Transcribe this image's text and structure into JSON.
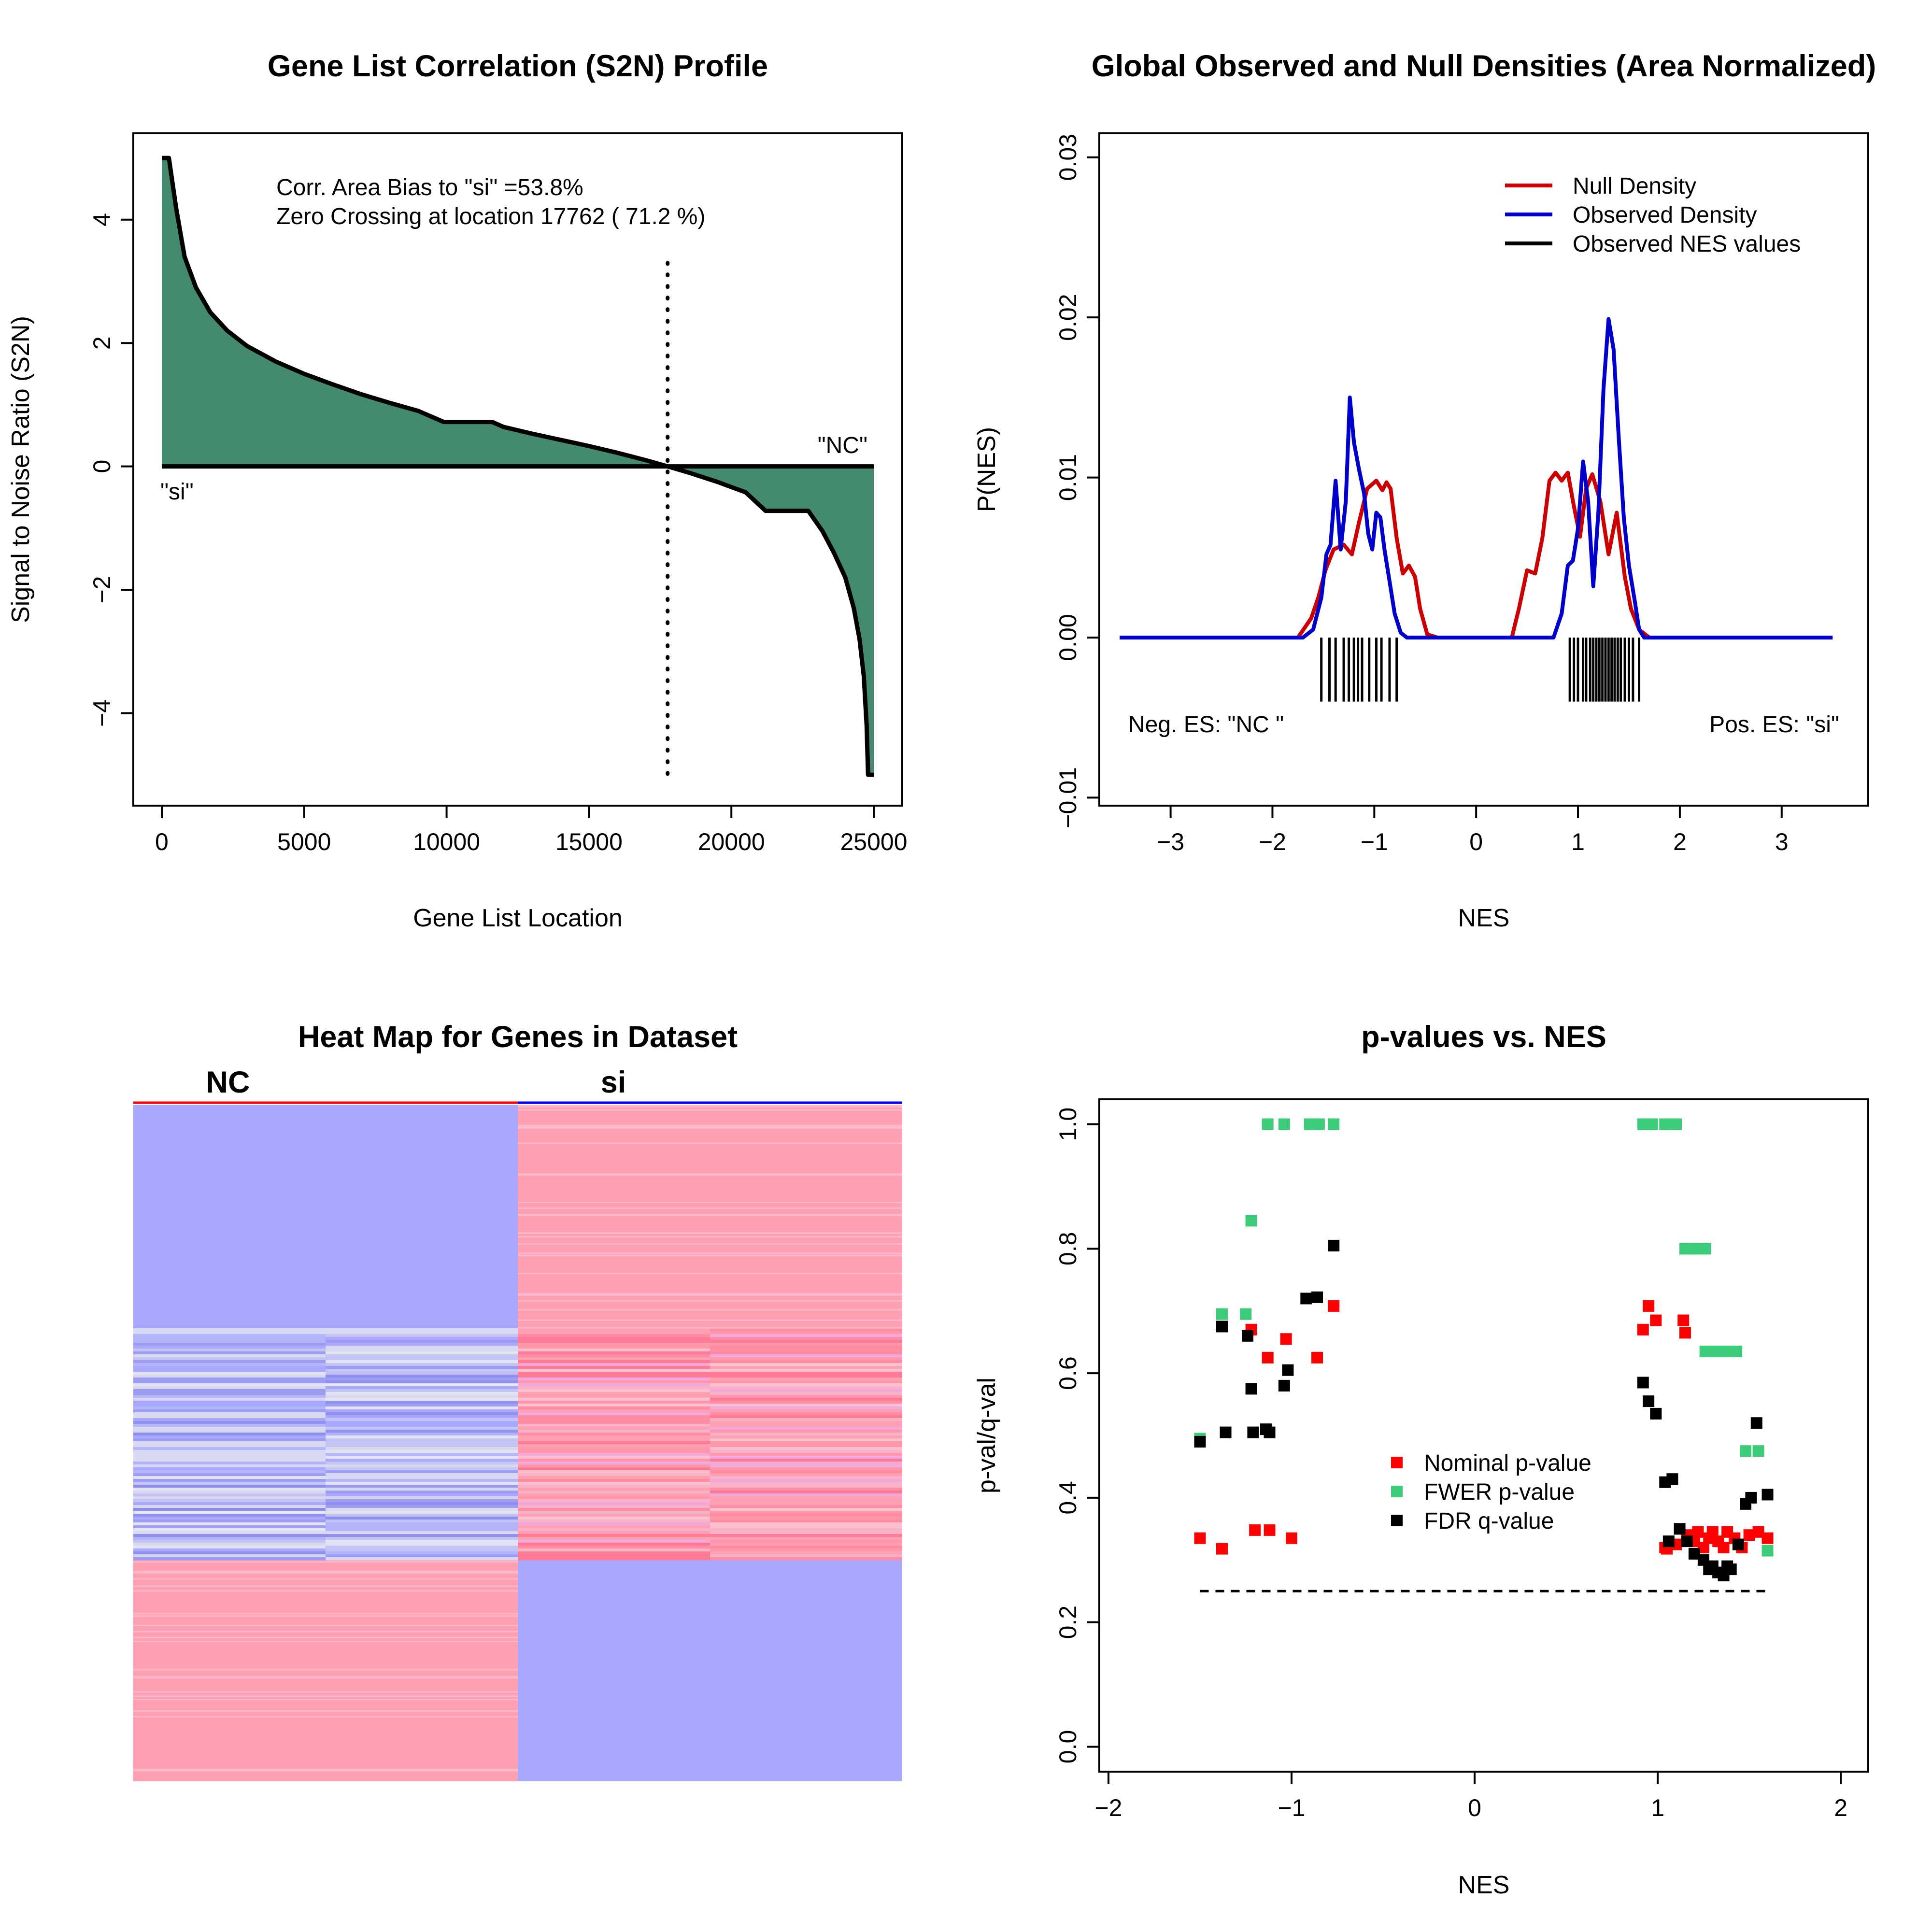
{
  "chart_data": [
    {
      "type": "area",
      "title": "Gene List Correlation (S2N) Profile",
      "xlabel": "Gene List Location",
      "ylabel": "Signal to Noise Ratio (S2N)",
      "xlim": [
        -1000,
        26000
      ],
      "ylim": [
        -5.5,
        5.4
      ],
      "xticks": [
        "0",
        "5000",
        "10000",
        "15000",
        "20000",
        "25000"
      ],
      "xtick_values": [
        0,
        5000,
        10000,
        15000,
        20000,
        25000
      ],
      "yticks": [
        "−4",
        "−2",
        "0",
        "2",
        "4"
      ],
      "ytick_values": [
        -4,
        -2,
        0,
        2,
        4
      ],
      "x": [
        0,
        250,
        500,
        800,
        1200,
        1700,
        2300,
        3000,
        4000,
        5000,
        6000,
        7000,
        8000,
        9000,
        9900,
        10000,
        11600,
        12000,
        13000,
        14000,
        15000,
        16000,
        17000,
        17762,
        18500,
        19500,
        20500,
        21200,
        22700,
        23200,
        23600,
        24000,
        24300,
        24500,
        24650,
        24750,
        24800,
        24850,
        25000
      ],
      "y": [
        5.0,
        5.0,
        4.2,
        3.4,
        2.9,
        2.5,
        2.2,
        1.95,
        1.7,
        1.5,
        1.33,
        1.17,
        1.03,
        0.9,
        0.72,
        0.72,
        0.72,
        0.64,
        0.53,
        0.43,
        0.33,
        0.22,
        0.1,
        0.0,
        -0.1,
        -0.25,
        -0.42,
        -0.72,
        -0.72,
        -1.05,
        -1.4,
        -1.8,
        -2.3,
        -2.8,
        -3.4,
        -4.2,
        -5.0,
        -5.0,
        -5.0
      ],
      "fill_color": "#448a6f",
      "zero_crossing": 17762,
      "annotations": {
        "bias": "Corr. Area Bias to \"si\" =53.8%",
        "zero_crossing": "Zero Crossing at location  17762  ( 71.2  %)",
        "left_class": "\"si\"",
        "right_class": "\"NC\""
      }
    },
    {
      "type": "line",
      "title": "Global Observed and Null Densities (Area Normalized)",
      "xlabel": "NES",
      "ylabel": "P(NES)",
      "xlim": [
        -3.7,
        3.85
      ],
      "ylim": [
        -0.0105,
        0.0315
      ],
      "xticks": [
        "−3",
        "−2",
        "−1",
        "0",
        "1",
        "2",
        "3"
      ],
      "xtick_values": [
        -3,
        -2,
        -1,
        0,
        1,
        2,
        3
      ],
      "yticks": [
        "−0.01",
        "0.00",
        "0.01",
        "0.02",
        "0.03"
      ],
      "ytick_values": [
        -0.01,
        0,
        0.01,
        0.02,
        0.03
      ],
      "legend": {
        "position": "top-right",
        "entries": [
          "Null Density",
          "Observed Density",
          "Observed NES values"
        ],
        "colors": [
          "#cc0000",
          "#0000cc",
          "#000000"
        ]
      },
      "series": [
        {
          "name": "Null Density",
          "color": "#cc0000",
          "x": [
            -3.5,
            -1.75,
            -1.62,
            -1.55,
            -1.48,
            -1.4,
            -1.3,
            -1.22,
            -1.15,
            -1.07,
            -0.98,
            -0.92,
            -0.88,
            -0.84,
            -0.78,
            -0.72,
            -0.66,
            -0.6,
            -0.55,
            -0.48,
            -0.38,
            -0.32,
            0.35,
            0.42,
            0.5,
            0.58,
            0.65,
            0.72,
            0.78,
            0.84,
            0.9,
            0.96,
            1.02,
            1.08,
            1.14,
            1.22,
            1.3,
            1.38,
            1.46,
            1.52,
            1.6,
            1.7,
            3.5
          ],
          "y": [
            0.0,
            0.0,
            0.0012,
            0.0025,
            0.0042,
            0.0055,
            0.0058,
            0.0052,
            0.0072,
            0.0093,
            0.0098,
            0.0092,
            0.0097,
            0.0093,
            0.0062,
            0.004,
            0.0045,
            0.0038,
            0.0018,
            0.0002,
            0.0,
            0.0,
            0.0,
            0.0018,
            0.0042,
            0.004,
            0.0062,
            0.0098,
            0.0103,
            0.0098,
            0.0103,
            0.0082,
            0.0063,
            0.0093,
            0.0102,
            0.0085,
            0.0052,
            0.0078,
            0.0038,
            0.0018,
            0.0005,
            0.0,
            0.0
          ]
        },
        {
          "name": "Observed Density",
          "color": "#0000cc",
          "x": [
            -3.5,
            -1.7,
            -1.6,
            -1.52,
            -1.47,
            -1.43,
            -1.38,
            -1.33,
            -1.28,
            -1.24,
            -1.2,
            -1.15,
            -1.1,
            -1.06,
            -1.02,
            -0.98,
            -0.94,
            -0.9,
            -0.85,
            -0.8,
            -0.74,
            -0.68,
            -0.65,
            0.6,
            0.76,
            0.84,
            0.9,
            0.95,
            1.0,
            1.05,
            1.1,
            1.15,
            1.2,
            1.25,
            1.3,
            1.35,
            1.4,
            1.45,
            1.5,
            1.56,
            1.6,
            1.65,
            3.5
          ],
          "y": [
            0.0,
            0.0,
            0.0005,
            0.0025,
            0.0052,
            0.0058,
            0.0098,
            0.0055,
            0.0085,
            0.015,
            0.0122,
            0.0105,
            0.009,
            0.0065,
            0.0055,
            0.0078,
            0.0075,
            0.0055,
            0.0035,
            0.0015,
            0.0003,
            0.0,
            0.0,
            0.0,
            0.0,
            0.0015,
            0.0045,
            0.0048,
            0.0068,
            0.011,
            0.0085,
            0.0032,
            0.0078,
            0.0155,
            0.0199,
            0.018,
            0.0125,
            0.0075,
            0.0045,
            0.0022,
            0.0005,
            0.0,
            0.0
          ]
        }
      ],
      "observed_nes": [
        -1.52,
        -1.44,
        -1.38,
        -1.3,
        -1.25,
        -1.2,
        -1.16,
        -1.12,
        -1.05,
        -0.98,
        -0.93,
        -0.85,
        -0.78,
        0.92,
        0.96,
        1.0,
        1.05,
        1.08,
        1.12,
        1.15,
        1.18,
        1.21,
        1.24,
        1.27,
        1.3,
        1.33,
        1.36,
        1.39,
        1.42,
        1.46,
        1.5,
        1.54,
        1.6
      ],
      "annotations": {
        "left": "Neg. ES: \"NC \"",
        "right": "Pos. ES: \"si\""
      }
    },
    {
      "type": "heatmap",
      "title": "Heat Map for Genes in Dataset",
      "column_groups": [
        "NC",
        "si"
      ],
      "colors": {
        "high": "#ffa0b2",
        "low": "#a8a8ff",
        "mid": "#d8d8f0"
      }
    },
    {
      "type": "scatter",
      "title": "p-values vs. NES",
      "xlabel": "NES",
      "ylabel": "p-val/q-val",
      "xlim": [
        -2.05,
        2.15
      ],
      "ylim": [
        -0.04,
        1.04
      ],
      "xticks": [
        "−2",
        "−1",
        "0",
        "1",
        "2"
      ],
      "xtick_values": [
        -2,
        -1,
        0,
        1,
        2
      ],
      "yticks": [
        "0.0",
        "0.2",
        "0.4",
        "0.6",
        "0.8",
        "1.0"
      ],
      "ytick_values": [
        0,
        0.2,
        0.4,
        0.6,
        0.8,
        1.0
      ],
      "threshold": 0.25,
      "legend": {
        "position": "center-right",
        "entries": [
          "Nominal p-value",
          "FWER p-value",
          "FDR q-value"
        ],
        "colors": [
          "#ff0000",
          "#3dcc7a",
          "#000000"
        ]
      },
      "series": [
        {
          "name": "Nominal p-value",
          "color": "#ff0000",
          "x": [
            -1.5,
            -1.38,
            -1.22,
            -1.2,
            -1.13,
            -1.12,
            -1.03,
            -1.0,
            -0.86,
            -0.77,
            0.92,
            0.95,
            0.99,
            1.05,
            1.1,
            1.14,
            1.15,
            1.16,
            1.2,
            1.22,
            1.25,
            1.28,
            1.3,
            1.33,
            1.36,
            1.38,
            1.42,
            1.46,
            1.5,
            1.55,
            1.6,
            1.04
          ],
          "y": [
            0.335,
            0.318,
            0.67,
            0.348,
            0.625,
            0.348,
            0.655,
            0.335,
            0.625,
            0.708,
            0.67,
            0.708,
            0.685,
            0.318,
            0.325,
            0.685,
            0.665,
            0.34,
            0.33,
            0.345,
            0.32,
            0.335,
            0.345,
            0.33,
            0.32,
            0.345,
            0.335,
            0.32,
            0.34,
            0.345,
            0.335,
            0.32
          ]
        },
        {
          "name": "FWER p-value",
          "color": "#3dcc7a",
          "x": [
            -1.5,
            -1.38,
            -1.25,
            -1.22,
            -1.13,
            -1.04,
            -0.9,
            -0.85,
            -0.77,
            0.92,
            0.97,
            1.04,
            1.1,
            1.15,
            1.2,
            1.26,
            1.26,
            1.32,
            1.38,
            1.43,
            1.48,
            1.55,
            1.6
          ],
          "y": [
            0.495,
            0.695,
            0.695,
            0.845,
            1.0,
            1.0,
            1.0,
            1.0,
            1.0,
            1.0,
            1.0,
            1.0,
            1.0,
            0.8,
            0.8,
            0.8,
            0.635,
            0.635,
            0.635,
            0.635,
            0.475,
            0.475,
            0.315
          ]
        },
        {
          "name": "FDR q-value",
          "color": "#000000",
          "x": [
            -1.5,
            -1.38,
            -1.36,
            -1.24,
            -1.22,
            -1.21,
            -1.14,
            -1.12,
            -1.04,
            -1.02,
            -0.92,
            -0.86,
            -0.77,
            0.92,
            0.95,
            0.99,
            1.04,
            1.08,
            1.12,
            1.16,
            1.2,
            1.25,
            1.28,
            1.3,
            1.33,
            1.36,
            1.38,
            1.4,
            1.44,
            1.48,
            1.51,
            1.54,
            1.6,
            1.06
          ],
          "y": [
            0.49,
            0.675,
            0.505,
            0.66,
            0.575,
            0.505,
            0.51,
            0.505,
            0.58,
            0.605,
            0.72,
            0.722,
            0.805,
            0.585,
            0.555,
            0.535,
            0.425,
            0.43,
            0.35,
            0.33,
            0.31,
            0.3,
            0.285,
            0.29,
            0.28,
            0.275,
            0.29,
            0.285,
            0.325,
            0.39,
            0.4,
            0.52,
            0.405,
            0.33
          ]
        }
      ]
    }
  ]
}
